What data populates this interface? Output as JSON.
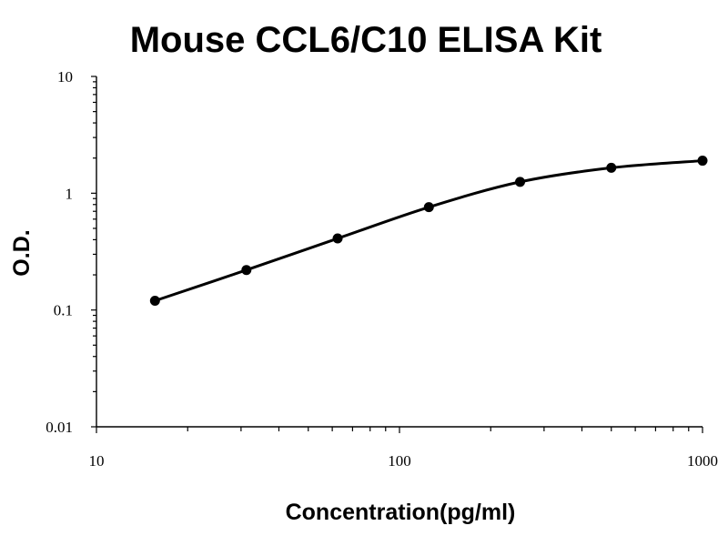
{
  "chart_data": {
    "type": "line",
    "title": "Mouse CCL6/C10 ELISA Kit",
    "xlabel": "Concentration(pg/ml)",
    "ylabel": "O.D.",
    "x_scale": "log",
    "y_scale": "log",
    "xlim": [
      10,
      1000
    ],
    "ylim": [
      0.01,
      10
    ],
    "x_ticks": [
      10,
      100,
      1000
    ],
    "x_tick_labels": [
      "10",
      "100",
      "1000"
    ],
    "y_ticks": [
      0.01,
      0.1,
      1,
      10
    ],
    "y_tick_labels": [
      "0.01",
      "0.1",
      "1",
      "10"
    ],
    "grid": false,
    "series": [
      {
        "x": [
          15.6,
          31.25,
          62.5,
          125,
          250,
          500,
          1000
        ],
        "y": [
          0.12,
          0.22,
          0.41,
          0.76,
          1.25,
          1.65,
          1.9
        ]
      }
    ],
    "colors": {
      "line": "#000000",
      "marker": "#000000"
    }
  }
}
